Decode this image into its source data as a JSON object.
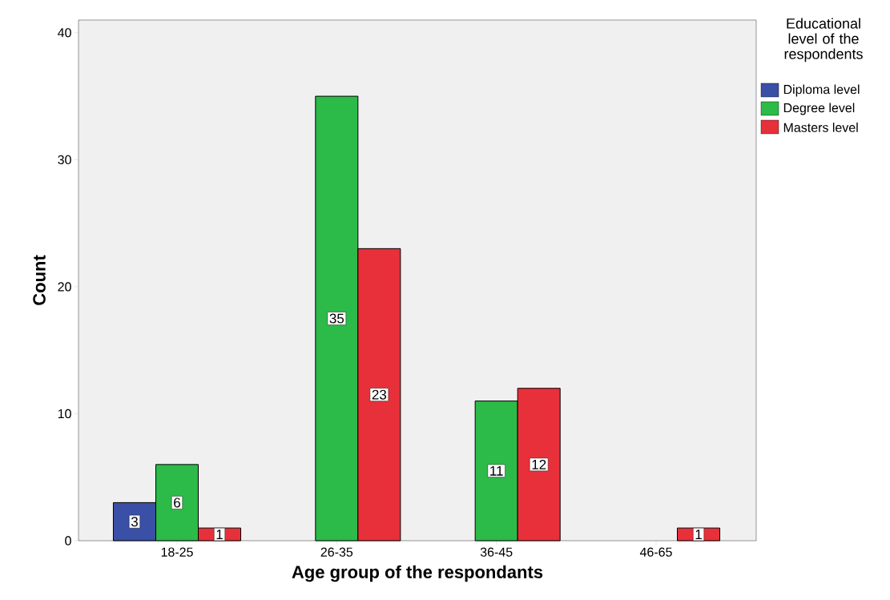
{
  "chart_data": {
    "type": "bar",
    "xlabel": "Age group of the respondants",
    "ylabel": "Count",
    "legend_title": "Educational level of the respondents",
    "categories": [
      "18-25",
      "26-35",
      "36-45",
      "46-65"
    ],
    "series": [
      {
        "name": "Diploma level",
        "color": "#3a4fa6",
        "values": [
          3,
          null,
          null,
          null
        ]
      },
      {
        "name": "Degree level",
        "color": "#2cba48",
        "values": [
          6,
          35,
          11,
          null
        ]
      },
      {
        "name": "Masters level",
        "color": "#e8303a",
        "values": [
          1,
          23,
          12,
          1
        ]
      }
    ],
    "ylim": [
      0,
      41
    ],
    "yticks": [
      0,
      10,
      20,
      30,
      40
    ],
    "grid": false,
    "legend": "top right",
    "data_labels": true
  }
}
